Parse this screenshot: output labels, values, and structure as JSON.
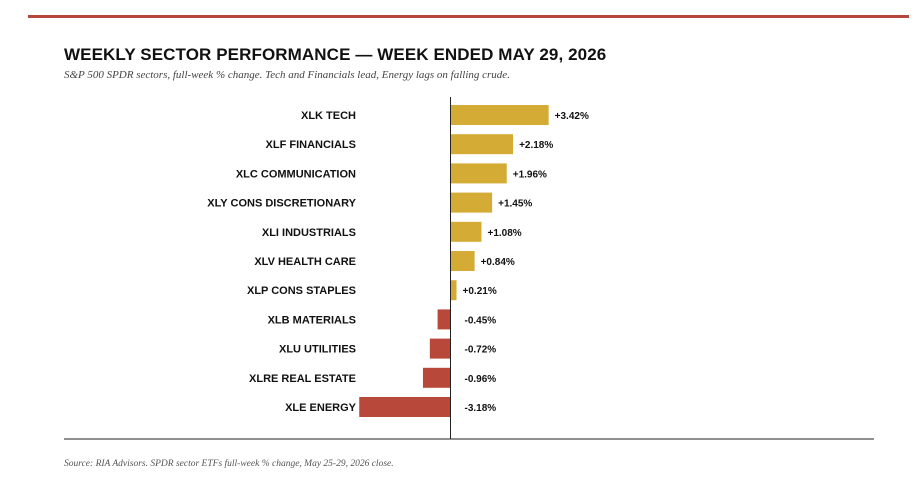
{
  "header": {
    "title": "WEEKLY SECTOR PERFORMANCE — WEEK ENDED MAY 29, 2026",
    "subtitle": "S&P 500 SPDR sectors, full-week % change. Tech and Financials lead, Energy lags on falling crude."
  },
  "footer": {
    "source": "Source: RIA Advisors. SPDR sector ETFs full-week % change, May 25-29, 2026 close."
  },
  "colors": {
    "accent_rule": "#b5483a",
    "positive": "#d4ac35",
    "negative": "#b8493a",
    "axis": "#222222"
  },
  "chart_data": {
    "type": "bar",
    "orientation": "horizontal",
    "title": "WEEKLY SECTOR PERFORMANCE — WEEK ENDED MAY 29, 2026",
    "subtitle": "S&P 500 SPDR sectors, full-week % change. Tech and Financials lead, Energy lags on falling crude.",
    "xlabel": "",
    "ylabel": "",
    "unit": "%",
    "xlim": [
      -4.5,
      7.2
    ],
    "grid": false,
    "categories": [
      "XLK TECH",
      "XLF FINANCIALS",
      "XLC COMMUNICATION",
      "XLY CONS DISCRETIONARY",
      "XLI INDUSTRIALS",
      "XLV HEALTH CARE",
      "XLP CONS STAPLES",
      "XLB MATERIALS",
      "XLU UTILITIES",
      "XLRE REAL ESTATE",
      "XLE ENERGY"
    ],
    "values": [
      3.42,
      2.18,
      1.96,
      1.45,
      1.08,
      0.84,
      0.21,
      -0.45,
      -0.72,
      -0.96,
      -3.18
    ],
    "value_labels": [
      "+3.42%",
      "+2.18%",
      "+1.96%",
      "+1.45%",
      "+1.08%",
      "+0.84%",
      "+0.21%",
      "-0.45%",
      "-0.72%",
      "-0.96%",
      "-3.18%"
    ]
  }
}
